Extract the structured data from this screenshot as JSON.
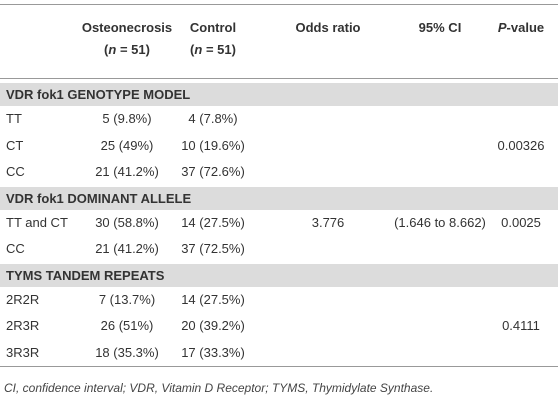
{
  "header": [
    {
      "lines": [
        [
          {
            "text": "Osteonecrosis"
          }
        ],
        [
          {
            "text": "("
          },
          {
            "text": "n",
            "italic": true
          },
          {
            "text": " = 51)"
          }
        ]
      ]
    },
    {
      "lines": [
        [
          {
            "text": "Control"
          }
        ],
        [
          {
            "text": "("
          },
          {
            "text": "n",
            "italic": true
          },
          {
            "text": " = 51)"
          }
        ]
      ]
    },
    {
      "lines": [
        [
          {
            "text": "Odds ratio"
          }
        ]
      ]
    },
    {
      "lines": [
        [
          {
            "text": "95% CI"
          }
        ]
      ]
    },
    {
      "lines": [
        [
          {
            "text": "P",
            "italic": true
          },
          {
            "text": "-value"
          }
        ]
      ]
    }
  ],
  "sections": [
    {
      "title": "VDR fok1 GENOTYPE MODEL",
      "rows": [
        {
          "label": "TT",
          "osteonecrosis": "5 (9.8%)",
          "control": "4 (7.8%)"
        },
        {
          "label": "CT",
          "osteonecrosis": "25 (49%)",
          "control": "10 (19.6%)",
          "p_value": "0.00326"
        },
        {
          "label": "CC",
          "osteonecrosis": "21 (41.2%)",
          "control": "37 (72.6%)"
        }
      ]
    },
    {
      "title": "VDR fok1 DOMINANT ALLELE",
      "rows": [
        {
          "label": "TT and CT",
          "osteonecrosis": "30 (58.8%)",
          "control": "14 (27.5%)",
          "odds_ratio": "3.776",
          "ci": "(1.646 to 8.662)",
          "p_value": "0.0025"
        },
        {
          "label": "CC",
          "osteonecrosis": "21 (41.2%)",
          "control": "37 (72.5%)"
        }
      ]
    },
    {
      "title": "TYMS TANDEM REPEATS",
      "rows": [
        {
          "label": "2R2R",
          "osteonecrosis": "7 (13.7%)",
          "control": "14 (27.5%)"
        },
        {
          "label": "2R3R",
          "osteonecrosis": "26 (51%)",
          "control": "20 (39.2%)",
          "p_value": "0.4111"
        },
        {
          "label": "3R3R",
          "osteonecrosis": "18 (35.3%)",
          "control": "17 (33.3%)"
        }
      ]
    }
  ],
  "footnote": "CI, confidence interval; VDR, Vitamin D Receptor; TYMS, Thymidylate Synthase."
}
